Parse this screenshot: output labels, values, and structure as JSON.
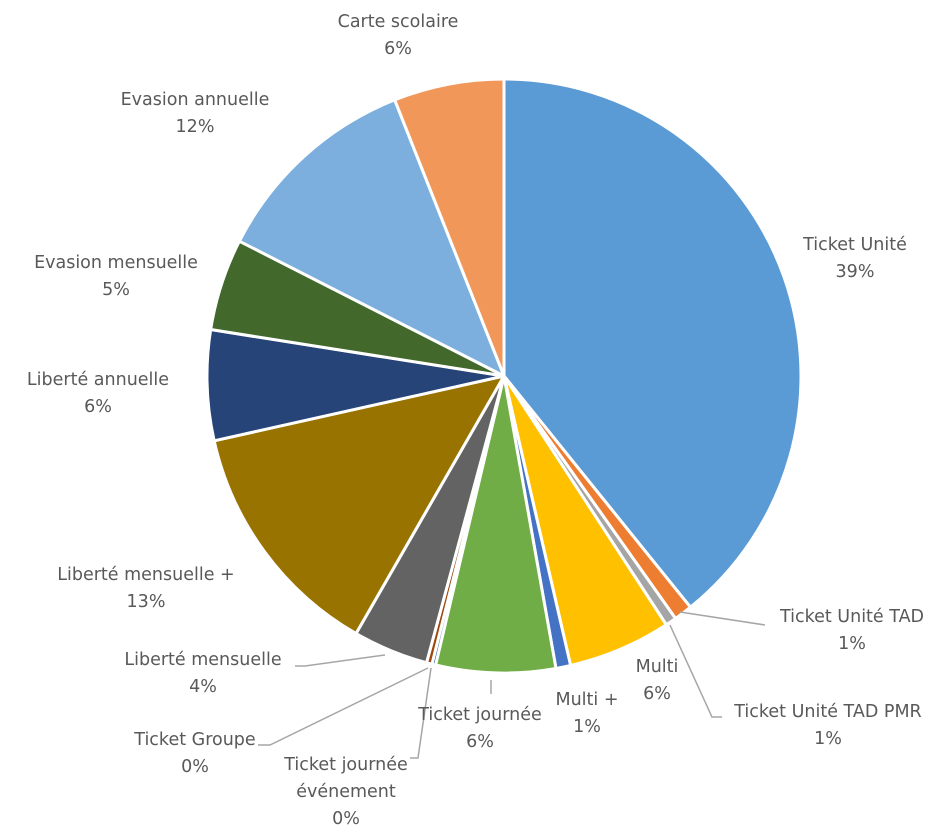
{
  "chart_data": {
    "type": "pie",
    "title": "",
    "slices": [
      {
        "label": "Ticket Unité",
        "percent_label": "39%",
        "value": 39.2,
        "color": "#5b9bd5"
      },
      {
        "label": "Ticket Unité TAD",
        "percent_label": "1%",
        "value": 1.0,
        "color": "#ed7d31"
      },
      {
        "label": "Ticket Unité TAD PMR",
        "percent_label": "1%",
        "value": 0.6,
        "color": "#a5a5a5"
      },
      {
        "label": "Multi",
        "percent_label": "6%",
        "value": 5.6,
        "color": "#ffc000"
      },
      {
        "label": "Multi +",
        "percent_label": "1%",
        "value": 0.8,
        "color": "#4472c4"
      },
      {
        "label": "Ticket journée",
        "percent_label": "6%",
        "value": 6.5,
        "color": "#70ad47"
      },
      {
        "label": "Ticket journée événement",
        "percent_label": "0%",
        "value": 0.2,
        "color": "#255e91"
      },
      {
        "label": "Ticket Groupe",
        "percent_label": "0%",
        "value": 0.3,
        "color": "#9e480e"
      },
      {
        "label": "Liberté mensuelle",
        "percent_label": "4%",
        "value": 4.1,
        "color": "#636363"
      },
      {
        "label": "Liberté mensuelle +",
        "percent_label": "13%",
        "value": 13.2,
        "color": "#997300"
      },
      {
        "label": "Liberté annuelle",
        "percent_label": "6%",
        "value": 6.0,
        "color": "#264478"
      },
      {
        "label": "Evasion mensuelle",
        "percent_label": "5%",
        "value": 5.0,
        "color": "#43682b"
      },
      {
        "label": "Evasion annuelle",
        "percent_label": "12%",
        "value": 11.5,
        "color": "#7cafdd"
      },
      {
        "label": "Carte scolaire",
        "percent_label": "6%",
        "value": 6.0,
        "color": "#f1975a"
      }
    ]
  }
}
